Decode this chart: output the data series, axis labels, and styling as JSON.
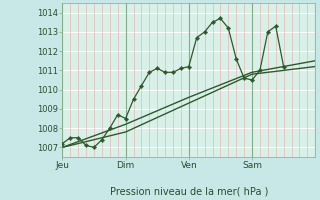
{
  "background_color": "#c8e8e8",
  "plot_bg_color": "#d8f0e8",
  "line_color": "#2d5a2d",
  "ylabel": "Pression niveau de la mer( hPa )",
  "ylim": [
    1006.5,
    1014.5
  ],
  "yticks": [
    1007,
    1008,
    1009,
    1010,
    1011,
    1012,
    1013,
    1014
  ],
  "day_labels": [
    "Jeu",
    "Dim",
    "Ven",
    "Sam"
  ],
  "day_positions": [
    0,
    72,
    144,
    216
  ],
  "total_steps": 288,
  "line1_x": [
    0,
    9,
    18,
    27,
    36,
    45,
    54,
    63,
    72,
    81,
    90,
    99,
    108,
    117,
    126,
    135,
    144,
    153,
    162,
    171,
    180,
    189,
    198,
    207,
    216,
    225,
    234,
    243,
    252
  ],
  "line1_y": [
    1007.2,
    1007.5,
    1007.5,
    1007.1,
    1007.0,
    1007.4,
    1008.0,
    1008.7,
    1008.5,
    1009.5,
    1010.2,
    1010.9,
    1011.1,
    1010.9,
    1010.9,
    1011.1,
    1011.2,
    1012.7,
    1013.0,
    1013.5,
    1013.7,
    1013.2,
    1011.6,
    1010.6,
    1010.5,
    1011.0,
    1013.0,
    1013.3,
    1011.2
  ],
  "line2_x": [
    0,
    72,
    144,
    216,
    288
  ],
  "line2_y": [
    1007.0,
    1007.8,
    1009.3,
    1010.8,
    1011.2
  ],
  "line3_x": [
    0,
    72,
    144,
    216,
    288
  ],
  "line3_y": [
    1007.0,
    1008.2,
    1009.6,
    1010.9,
    1011.5
  ]
}
